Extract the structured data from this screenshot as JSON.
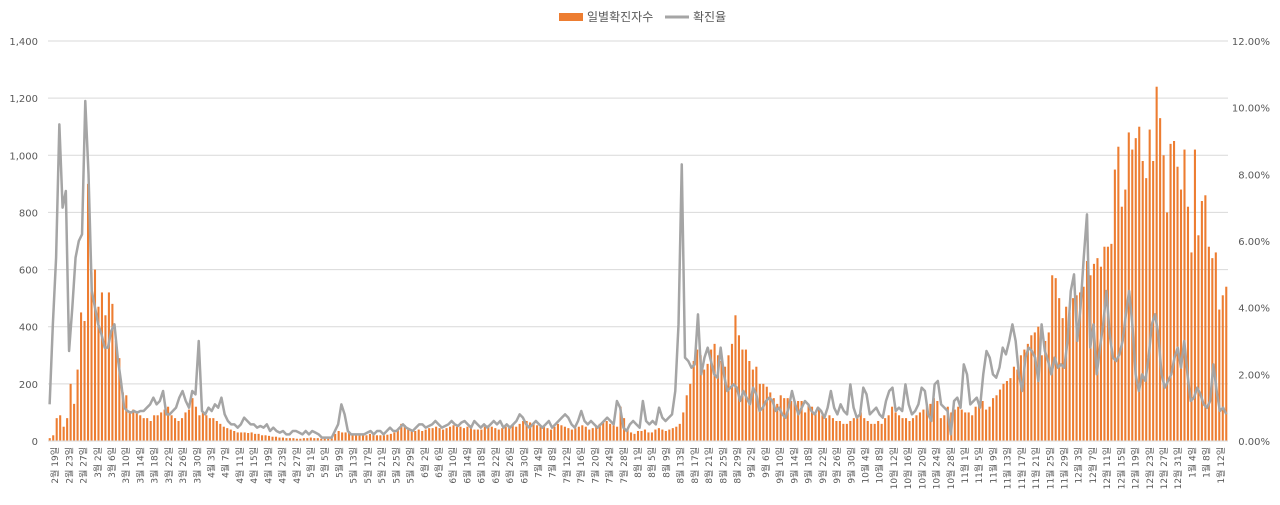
{
  "chart_data": {
    "type": "bar+line",
    "legend": {
      "placement": "top-center"
    },
    "series": [
      {
        "name": "일별확진자수",
        "type": "bar",
        "axis": "left",
        "color": "#ED7D31",
        "values": [
          10,
          20,
          80,
          90,
          50,
          80,
          200,
          130,
          250,
          450,
          420,
          900,
          590,
          600,
          470,
          520,
          440,
          520,
          480,
          350,
          290,
          170,
          160,
          100,
          110,
          100,
          90,
          80,
          80,
          70,
          90,
          90,
          100,
          110,
          120,
          90,
          80,
          70,
          80,
          100,
          110,
          150,
          120,
          90,
          100,
          90,
          80,
          80,
          70,
          60,
          50,
          45,
          40,
          35,
          30,
          30,
          30,
          28,
          30,
          25,
          25,
          20,
          20,
          18,
          15,
          15,
          12,
          12,
          10,
          10,
          10,
          8,
          8,
          10,
          10,
          12,
          10,
          10,
          8,
          8,
          8,
          10,
          25,
          35,
          30,
          30,
          28,
          25,
          25,
          20,
          20,
          20,
          25,
          28,
          20,
          20,
          20,
          22,
          25,
          30,
          40,
          60,
          55,
          45,
          40,
          35,
          40,
          35,
          40,
          45,
          45,
          50,
          45,
          40,
          45,
          50,
          55,
          50,
          50,
          45,
          50,
          55,
          40,
          40,
          40,
          50,
          55,
          50,
          45,
          40,
          45,
          50,
          50,
          55,
          50,
          60,
          70,
          70,
          65,
          60,
          55,
          50,
          50,
          45,
          40,
          50,
          60,
          55,
          50,
          45,
          40,
          45,
          50,
          55,
          50,
          40,
          45,
          50,
          60,
          65,
          70,
          60,
          55,
          50,
          120,
          80,
          40,
          30,
          25,
          35,
          35,
          40,
          30,
          30,
          40,
          45,
          40,
          35,
          40,
          45,
          50,
          60,
          100,
          160,
          200,
          280,
          320,
          300,
          250,
          270,
          320,
          340,
          300,
          280,
          260,
          300,
          340,
          440,
          370,
          320,
          320,
          280,
          250,
          260,
          200,
          200,
          190,
          170,
          150,
          130,
          160,
          150,
          150,
          140,
          140,
          140,
          140,
          100,
          130,
          120,
          100,
          110,
          90,
          80,
          90,
          80,
          70,
          70,
          60,
          60,
          70,
          80,
          80,
          100,
          80,
          70,
          60,
          60,
          70,
          60,
          80,
          90,
          120,
          100,
          90,
          80,
          80,
          70,
          80,
          90,
          100,
          110,
          120,
          130,
          150,
          140,
          80,
          90,
          120,
          100,
          110,
          120,
          110,
          100,
          100,
          90,
          120,
          130,
          140,
          110,
          120,
          150,
          160,
          180,
          200,
          210,
          220,
          260,
          250,
          300,
          320,
          340,
          370,
          380,
          400,
          300,
          350,
          380,
          580,
          570,
          500,
          430,
          470,
          450,
          500,
          510,
          520,
          540,
          630,
          580,
          620,
          640,
          610,
          680,
          680,
          690,
          950,
          1030,
          820,
          880,
          1080,
          1020,
          1060,
          1100,
          980,
          920,
          1090,
          980,
          1240,
          1130,
          1000,
          800,
          1040,
          1050,
          960,
          880,
          1020,
          820,
          660,
          1020,
          720,
          840,
          860,
          680,
          640,
          660,
          460,
          510,
          540
        ]
      },
      {
        "name": "확진율",
        "type": "line",
        "axis": "right",
        "color": "#A5A5A5",
        "values": [
          1.1,
          3.5,
          5.5,
          9.5,
          7.0,
          7.5,
          2.7,
          4.0,
          5.5,
          6.0,
          6.2,
          10.2,
          8.0,
          4.5,
          4.0,
          3.5,
          3.2,
          2.8,
          2.8,
          3.3,
          3.5,
          2.5,
          1.8,
          1.0,
          0.9,
          0.85,
          0.9,
          0.85,
          0.9,
          0.9,
          1.0,
          1.1,
          1.3,
          1.1,
          1.2,
          1.5,
          0.8,
          0.8,
          0.9,
          1.0,
          1.3,
          1.5,
          1.2,
          1.0,
          1.5,
          1.4,
          3.0,
          0.9,
          0.8,
          1.0,
          0.9,
          1.1,
          1.0,
          1.3,
          0.8,
          0.6,
          0.5,
          0.5,
          0.4,
          0.5,
          0.7,
          0.6,
          0.5,
          0.5,
          0.4,
          0.45,
          0.4,
          0.5,
          0.3,
          0.4,
          0.3,
          0.25,
          0.3,
          0.2,
          0.2,
          0.3,
          0.3,
          0.25,
          0.2,
          0.3,
          0.2,
          0.3,
          0.25,
          0.2,
          0.1,
          0.1,
          0.1,
          0.1,
          0.3,
          0.5,
          1.1,
          0.8,
          0.3,
          0.2,
          0.2,
          0.2,
          0.2,
          0.2,
          0.25,
          0.3,
          0.2,
          0.3,
          0.3,
          0.2,
          0.3,
          0.4,
          0.3,
          0.3,
          0.4,
          0.5,
          0.4,
          0.35,
          0.3,
          0.4,
          0.5,
          0.5,
          0.4,
          0.45,
          0.5,
          0.6,
          0.5,
          0.4,
          0.45,
          0.5,
          0.6,
          0.5,
          0.45,
          0.55,
          0.6,
          0.5,
          0.4,
          0.6,
          0.5,
          0.4,
          0.5,
          0.4,
          0.5,
          0.6,
          0.5,
          0.6,
          0.4,
          0.5,
          0.4,
          0.5,
          0.6,
          0.8,
          0.7,
          0.5,
          0.4,
          0.5,
          0.6,
          0.5,
          0.4,
          0.5,
          0.6,
          0.4,
          0.5,
          0.6,
          0.7,
          0.8,
          0.7,
          0.5,
          0.4,
          0.6,
          0.9,
          0.6,
          0.5,
          0.6,
          0.5,
          0.4,
          0.5,
          0.6,
          0.7,
          0.6,
          0.5,
          1.2,
          1.0,
          0.4,
          0.3,
          0.5,
          0.6,
          0.5,
          0.4,
          1.2,
          0.6,
          0.5,
          0.6,
          0.5,
          1.0,
          0.7,
          0.6,
          0.7,
          0.8,
          1.5,
          3.5,
          8.3,
          2.5,
          2.4,
          2.2,
          2.3,
          3.8,
          2.0,
          2.5,
          2.8,
          2.4,
          2.0,
          1.9,
          2.8,
          2.0,
          1.5,
          1.6,
          1.7,
          1.6,
          1.2,
          1.5,
          1.3,
          1.1,
          1.6,
          1.4,
          0.9,
          1.0,
          1.2,
          1.3,
          1.2,
          0.9,
          1.0,
          0.8,
          0.7,
          1.0,
          1.5,
          1.1,
          0.8,
          1.0,
          1.2,
          1.1,
          0.9,
          0.8,
          1.0,
          0.9,
          0.7,
          1.0,
          1.5,
          1.0,
          0.8,
          1.1,
          0.9,
          0.8,
          1.7,
          1.0,
          0.7,
          0.8,
          1.6,
          1.4,
          0.8,
          0.9,
          1.0,
          0.8,
          0.7,
          1.2,
          1.5,
          1.6,
          0.9,
          1.0,
          0.9,
          1.7,
          1.1,
          0.8,
          0.9,
          1.1,
          1.6,
          1.5,
          0.8,
          0.6,
          1.7,
          1.8,
          1.1,
          1.0,
          0.9,
          0.2,
          1.2,
          1.3,
          1.0,
          2.3,
          2.0,
          1.1,
          1.2,
          1.3,
          1.0,
          2.0,
          2.7,
          2.5,
          2.0,
          1.9,
          2.2,
          2.8,
          2.6,
          3.0,
          3.5,
          3.0,
          2.0,
          1.5,
          2.5,
          2.8,
          2.7,
          2.5,
          1.8,
          3.5,
          2.7,
          2.4,
          2.0,
          2.5,
          2.2,
          2.3,
          2.2,
          3.0,
          4.5,
          5.0,
          3.0,
          4.0,
          5.5,
          6.8,
          2.8,
          3.5,
          2.0,
          2.8,
          3.5,
          4.5,
          3.2,
          2.5,
          2.4,
          2.6,
          3.0,
          3.8,
          4.5,
          3.5,
          2.0,
          1.5,
          2.0,
          1.8,
          2.5,
          3.5,
          3.8,
          3.2,
          2.0,
          1.6,
          1.8,
          2.0,
          2.5,
          2.8,
          2.2,
          3.0,
          2.0,
          1.2,
          1.3,
          1.6,
          1.4,
          1.1,
          1.0,
          1.2,
          2.3,
          1.5,
          0.9,
          1.0,
          0.8
        ]
      }
    ],
    "y_left": {
      "min": 0,
      "max": 1400,
      "ticks": [
        "0",
        "200",
        "400",
        "600",
        "800",
        "1,000",
        "1,200",
        "1,400"
      ]
    },
    "y_right": {
      "min": 0,
      "max": 12,
      "ticks": [
        "0.00%",
        "2.00%",
        "4.00%",
        "6.00%",
        "8.00%",
        "10.00%",
        "12.00%"
      ]
    },
    "x_tick_labels": [
      "2월 19일",
      "2월 23일",
      "2월 27일",
      "3월 2일",
      "3월 6일",
      "3월 10일",
      "3월 14일",
      "3월 18일",
      "3월 22일",
      "3월 26일",
      "3월 30일",
      "4월 3일",
      "4월 7일",
      "4월 11일",
      "4월 15일",
      "4월 19일",
      "4월 23일",
      "4월 27일",
      "5월 1일",
      "5월 5일",
      "5월 9일",
      "5월 13일",
      "5월 17일",
      "5월 21일",
      "5월 25일",
      "5월 29일",
      "6월 2일",
      "6월 6일",
      "6월 10일",
      "6월 14일",
      "6월 18일",
      "6월 22일",
      "6월 26일",
      "6월 30일",
      "7월 4일",
      "7월 8일",
      "7월 12일",
      "7월 16일",
      "7월 20일",
      "7월 24일",
      "7월 28일",
      "8월 1일",
      "8월 5일",
      "8월 9일",
      "8월 13일",
      "8월 17일",
      "8월 21일",
      "8월 25일",
      "8월 29일",
      "9월 2일",
      "9월 6일",
      "9월 10일",
      "9월 14일",
      "9월 18일",
      "9월 22일",
      "9월 26일",
      "9월 30일",
      "10월 4일",
      "10월 8일",
      "10월 12일",
      "10월 16일",
      "10월 20일",
      "10월 24일",
      "10월 28일",
      "11월 1일",
      "11월 5일",
      "11월 9일",
      "11월 13일",
      "11월 17일",
      "11월 21일",
      "11월 25일",
      "11월 29일",
      "12월 3일",
      "12월 7일",
      "12월 11일",
      "12월 15일",
      "12월 19일",
      "12월 23일",
      "12월 27일",
      "12월 31일",
      "1월 4일",
      "1월 8일",
      "1월 12일"
    ],
    "grid": true,
    "title": "",
    "xlabel": "",
    "ylabel": ""
  }
}
